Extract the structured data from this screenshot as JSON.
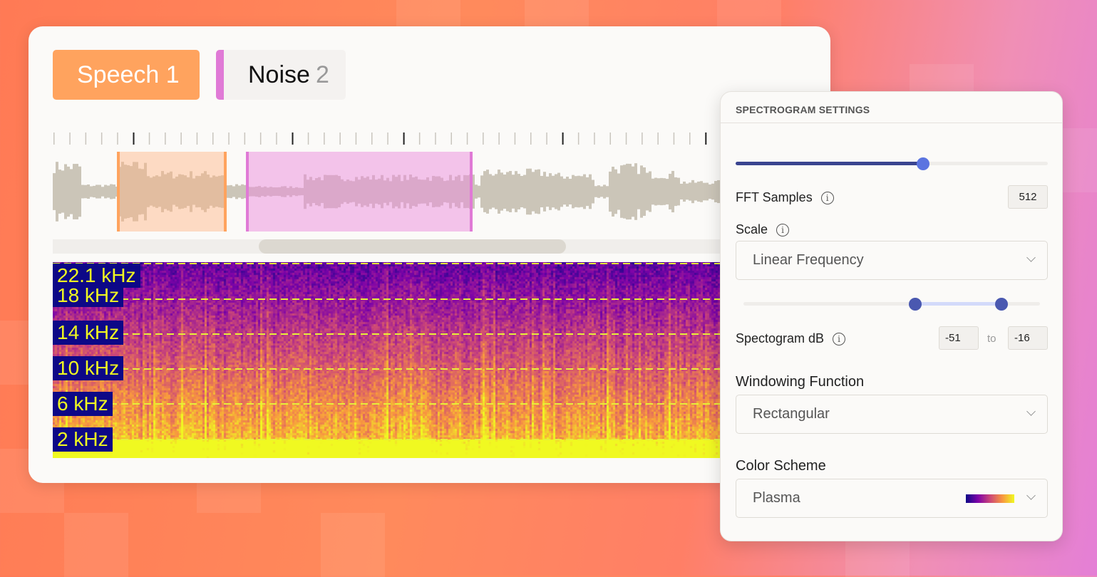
{
  "tabs": [
    {
      "label": "Speech",
      "number": "1",
      "color": "#ffa35e"
    },
    {
      "label": "Noise",
      "number": "2",
      "color": "#e07ad6"
    }
  ],
  "spectrogram": {
    "frequency_labels": [
      "22.1 kHz",
      "18 kHz",
      "14 kHz",
      "10 kHz",
      "6 kHz",
      "2 kHz"
    ],
    "color_scheme": "plasma"
  },
  "regions": [
    {
      "name": "Speech",
      "color": "#ffa35e"
    },
    {
      "name": "Noise",
      "color": "#e07ad6"
    }
  ],
  "settings": {
    "title": "SPECTROGRAM SETTINGS",
    "fft_slider_fraction": 0.6,
    "fft_label": "FFT Samples",
    "fft_value": "512",
    "scale_label": "Scale",
    "scale_value": "Linear Frequency",
    "db_range_fraction": [
      0.58,
      0.87
    ],
    "db_label": "Spectogram dB",
    "db_min": "-51",
    "db_to": "to",
    "db_max": "-16",
    "window_label": "Windowing Function",
    "window_value": "Rectangular",
    "color_label": "Color Scheme",
    "color_value": "Plasma",
    "accent": "#4a58b0"
  }
}
